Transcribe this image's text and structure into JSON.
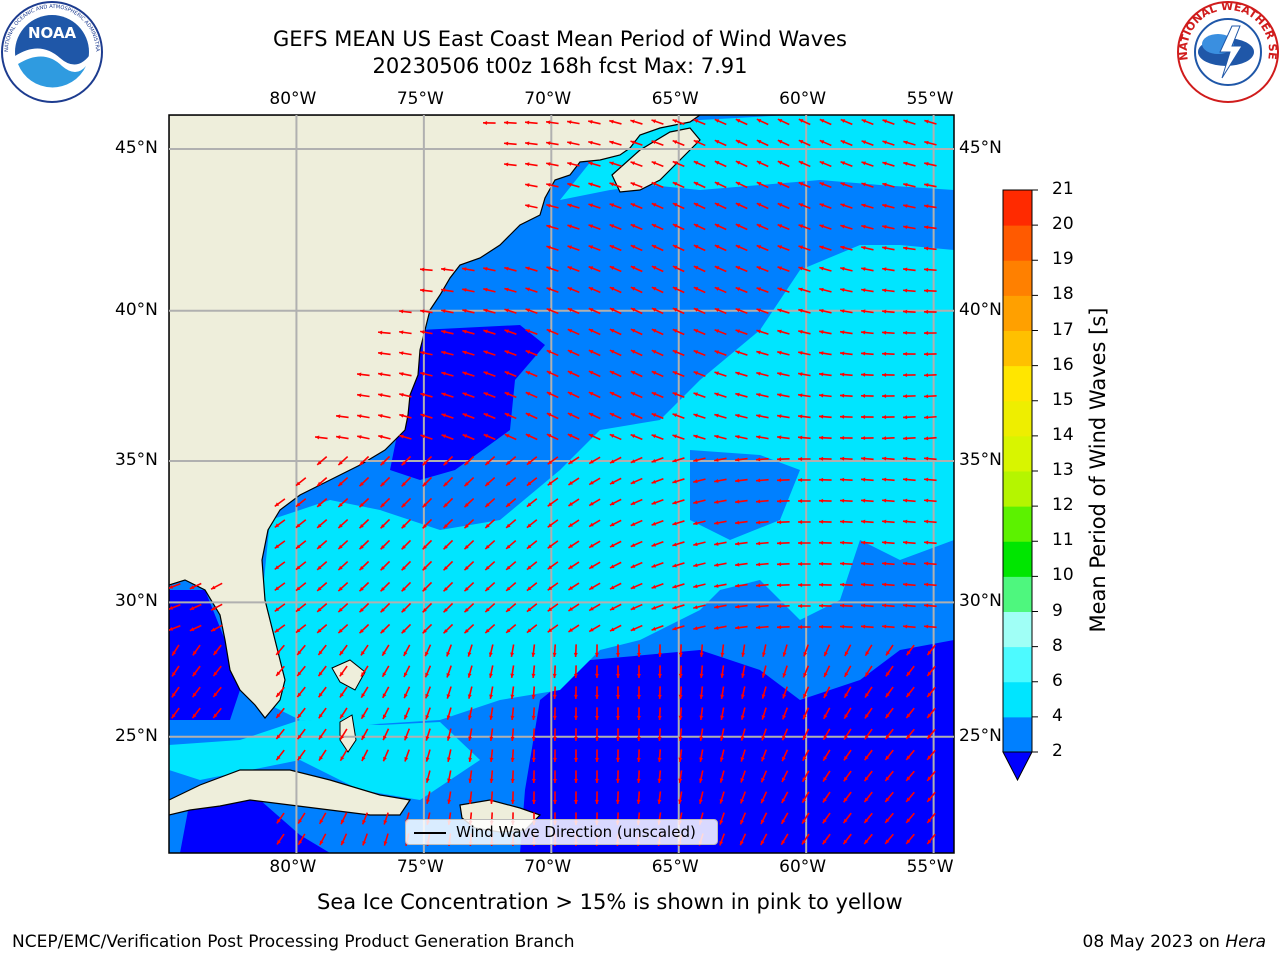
{
  "title_line1": "GEFS MEAN US East Coast Mean Period of Wind Waves",
  "title_line2": "20230506 t00z 168h fcst   Max: 7.91",
  "logos": {
    "left": {
      "name": "NOAA",
      "text": "NOAA",
      "ring_text": "NATIONAL OCEANIC AND ATMOSPHERIC ADMINISTRATION · U.S. DEPARTMENT OF COMMERCE"
    },
    "right": {
      "name": "National Weather Service",
      "ring_text": "NATIONAL WEATHER SERVICE"
    }
  },
  "map": {
    "lon_ticks": [
      "80°W",
      "75°W",
      "70°W",
      "65°W",
      "60°W",
      "55°W"
    ],
    "lat_ticks": [
      "45°N",
      "40°N",
      "35°N",
      "30°N",
      "25°N"
    ],
    "lon_values": [
      -80,
      -75,
      -70,
      -65,
      -60,
      -55
    ],
    "lat_values": [
      45,
      40,
      35,
      30,
      25
    ],
    "extent": {
      "lon": [
        -85,
        -54.2
      ],
      "lat": [
        20.5,
        46
      ]
    },
    "land_color": "#eeeedb",
    "arrow_color": "#ff0000",
    "legend_label": "Wind Wave Direction (unscaled)"
  },
  "colorbar": {
    "label": "Mean Period of Wind Waves [s]",
    "ticks": [
      "2",
      "4",
      "6",
      "8",
      "9",
      "10",
      "11",
      "12",
      "13",
      "14",
      "15",
      "16",
      "17",
      "18",
      "19",
      "20",
      "21"
    ],
    "colors": [
      "#0080ff",
      "#00e5ff",
      "#4dfaff",
      "#a0fff6",
      "#4ef77e",
      "#00e600",
      "#5cf200",
      "#b5f500",
      "#d8f500",
      "#eeee00",
      "#ffe600",
      "#ffc000",
      "#ffa000",
      "#ff8000",
      "#ff5a00",
      "#ff2a00"
    ],
    "under_color": "#0000ff"
  },
  "sea_ice_note": "Sea Ice Concentration > 15% is shown in pink to yellow",
  "footer_left": "NCEP/EMC/Verification Post Processing Product Generation Branch",
  "footer_date": "08 May 2023 on ",
  "footer_machine": "Hera"
}
